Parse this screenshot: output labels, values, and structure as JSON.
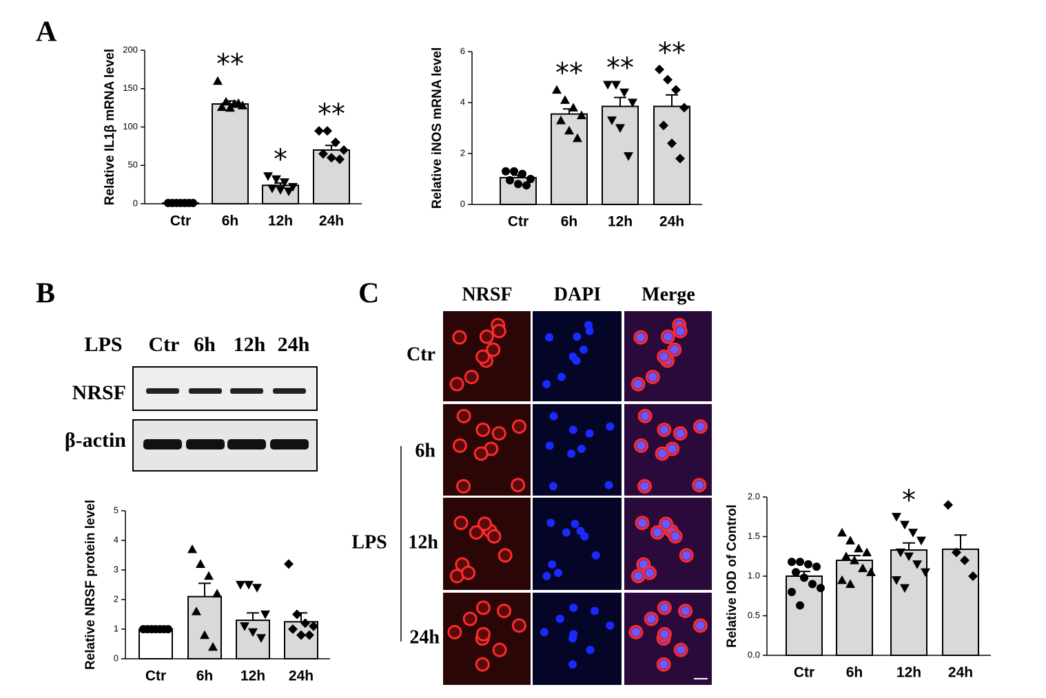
{
  "panel_labels": [
    "A",
    "B",
    "C"
  ],
  "blot": {
    "header": "LPS",
    "lanes": [
      "Ctr",
      "6h",
      "12h",
      "24h"
    ],
    "rows": [
      "NRSF",
      "β-actin"
    ]
  },
  "microscopy": {
    "columns": [
      "NRSF",
      "DAPI",
      "Merge"
    ],
    "rows": [
      "Ctr",
      "6h",
      "12h",
      "24h"
    ],
    "group": "LPS"
  },
  "chart_data": [
    {
      "type": "bar",
      "ylabel": "Relative IL1β mRNA level",
      "categories": [
        "Ctr",
        "6h",
        "12h",
        "24h"
      ],
      "values": [
        1,
        130,
        24,
        70
      ],
      "errors": [
        0.5,
        4,
        3,
        6
      ],
      "points": [
        [
          1,
          1,
          1,
          1,
          1,
          1,
          1
        ],
        [
          160,
          133,
          130,
          128,
          126,
          125,
          131
        ],
        [
          36,
          32,
          28,
          22,
          20,
          18,
          16
        ],
        [
          95,
          95,
          80,
          70,
          65,
          60,
          58
        ]
      ],
      "markers": [
        "circle",
        "triangle",
        "triangle-down",
        "diamond"
      ],
      "bar_colors": [
        "#d9d9d9",
        "#d9d9d9",
        "#d9d9d9",
        "#d9d9d9"
      ],
      "annotations": [
        null,
        "**",
        "*",
        "**"
      ],
      "ylim": [
        0,
        200
      ],
      "yticks": [
        0,
        50,
        100,
        150,
        200
      ]
    },
    {
      "type": "bar",
      "ylabel": "Relative iNOS mRNA level",
      "categories": [
        "Ctr",
        "6h",
        "12h",
        "24h"
      ],
      "values": [
        1.05,
        3.55,
        3.85,
        3.85
      ],
      "errors": [
        0.1,
        0.2,
        0.35,
        0.45
      ],
      "points": [
        [
          1.3,
          1.3,
          1.2,
          1.0,
          0.95,
          0.8,
          0.75
        ],
        [
          4.5,
          4.1,
          3.8,
          3.5,
          3.3,
          2.9,
          2.6
        ],
        [
          4.7,
          4.7,
          4.4,
          4.0,
          3.3,
          3.0,
          1.9
        ],
        [
          5.3,
          4.9,
          4.5,
          3.8,
          3.1,
          2.4,
          1.8
        ]
      ],
      "markers": [
        "circle",
        "triangle",
        "triangle-down",
        "diamond"
      ],
      "bar_colors": [
        "#d9d9d9",
        "#d9d9d9",
        "#d9d9d9",
        "#d9d9d9"
      ],
      "annotations": [
        null,
        "**",
        "**",
        "**"
      ],
      "ylim": [
        0,
        6
      ],
      "yticks": [
        0,
        2,
        4,
        6
      ]
    },
    {
      "type": "bar",
      "ylabel": "Relative NRSF protein level",
      "categories": [
        "Ctr",
        "6h",
        "12h",
        "24h"
      ],
      "values": [
        1,
        2.1,
        1.3,
        1.25
      ],
      "errors": [
        0,
        0.45,
        0.25,
        0.3
      ],
      "points": [
        [
          1,
          1,
          1,
          1,
          1,
          1,
          1
        ],
        [
          3.7,
          3.2,
          2.8,
          2.2,
          1.6,
          0.8,
          0.4
        ],
        [
          2.5,
          2.5,
          2.4,
          1.5,
          1.1,
          0.9,
          0.7
        ],
        [
          3.2,
          1.5,
          1.2,
          1.1,
          1.0,
          0.8,
          0.8
        ]
      ],
      "markers": [
        "circle",
        "triangle",
        "triangle-down",
        "diamond"
      ],
      "bar_colors": [
        "#ffffff",
        "#d9d9d9",
        "#d9d9d9",
        "#d9d9d9"
      ],
      "annotations": [
        null,
        null,
        null,
        null
      ],
      "ylim": [
        0,
        5
      ],
      "yticks": [
        0,
        1,
        2,
        3,
        4,
        5
      ]
    },
    {
      "type": "bar",
      "ylabel": "Relative IOD of Control",
      "categories": [
        "Ctr",
        "6h",
        "12h",
        "24h"
      ],
      "values": [
        1.0,
        1.2,
        1.33,
        1.34
      ],
      "errors": [
        0.06,
        0.06,
        0.09,
        0.18
      ],
      "points": [
        [
          1.18,
          1.18,
          1.15,
          1.12,
          1.05,
          0.98,
          0.9,
          0.85,
          0.8,
          0.63
        ],
        [
          1.55,
          1.45,
          1.35,
          1.3,
          1.25,
          1.2,
          1.1,
          1.05,
          0.95,
          0.9
        ],
        [
          1.75,
          1.65,
          1.55,
          1.45,
          1.3,
          1.25,
          1.15,
          1.05,
          0.95,
          0.85
        ],
        [
          1.9,
          1.3,
          1.2,
          1.0
        ]
      ],
      "markers": [
        "circle",
        "triangle",
        "triangle-down",
        "diamond"
      ],
      "bar_colors": [
        "#d9d9d9",
        "#d9d9d9",
        "#d9d9d9",
        "#d9d9d9"
      ],
      "annotations": [
        null,
        null,
        "*",
        null
      ],
      "ylim": [
        0,
        2.0
      ],
      "yticks": [
        {
          "value": 0,
          "label": "0.0"
        },
        {
          "value": 0.5,
          "label": "0.5"
        },
        {
          "value": 1.0,
          "label": "1.0"
        },
        {
          "value": 1.5,
          "label": "1.5"
        },
        {
          "value": 2.0,
          "label": "2.0"
        }
      ]
    }
  ]
}
